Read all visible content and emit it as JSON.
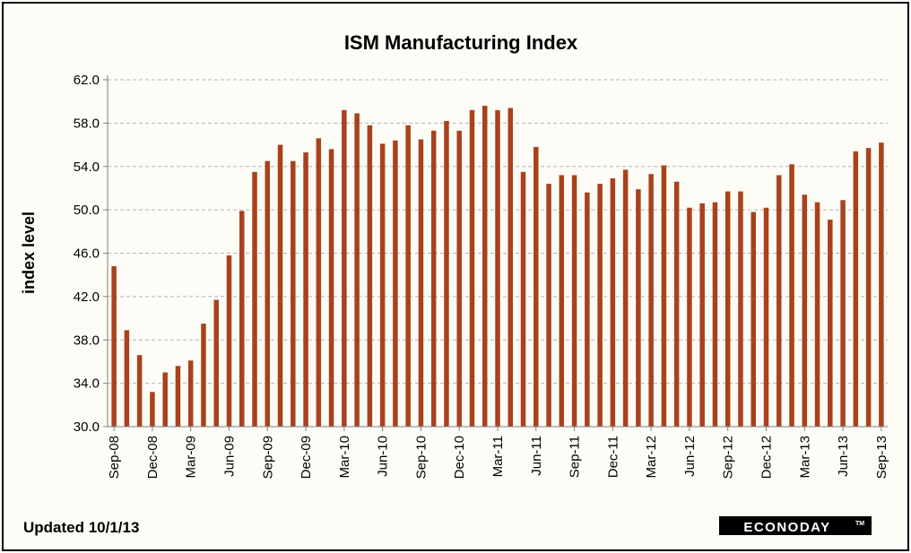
{
  "footer": {
    "updated": "Updated  10/1/13",
    "logo_text": "ECONODAY",
    "logo_tm": "TM"
  },
  "colors": {
    "bar": "#a8421c",
    "plot_bg": "#fdfcf6",
    "grid": "#b4b4b4",
    "axis": "#808080",
    "logo_bg": "#000000"
  },
  "chart_data": {
    "type": "bar",
    "title": "ISM Manufacturing Index",
    "xlabel": "",
    "ylabel": "index level",
    "ylim": [
      30.0,
      62.0
    ],
    "yticks": [
      "30.0",
      "34.0",
      "38.0",
      "42.0",
      "46.0",
      "50.0",
      "54.0",
      "58.0",
      "62.0"
    ],
    "grid": true,
    "legend": "none",
    "x_tick_labels": [
      "Sep-08",
      "Dec-08",
      "Mar-09",
      "Jun-09",
      "Sep-09",
      "Dec-09",
      "Mar-10",
      "Jun-10",
      "Sep-10",
      "Dec-10",
      "Mar-11",
      "Jun-11",
      "Sep-11",
      "Dec-11",
      "Mar-12",
      "Jun-12",
      "Sep-12",
      "Dec-12",
      "Mar-13",
      "Jun-13",
      "Sep-13"
    ],
    "categories": [
      "Sep-08",
      "Oct-08",
      "Nov-08",
      "Dec-08",
      "Jan-09",
      "Feb-09",
      "Mar-09",
      "Apr-09",
      "May-09",
      "Jun-09",
      "Jul-09",
      "Aug-09",
      "Sep-09",
      "Oct-09",
      "Nov-09",
      "Dec-09",
      "Jan-10",
      "Feb-10",
      "Mar-10",
      "Apr-10",
      "May-10",
      "Jun-10",
      "Jul-10",
      "Aug-10",
      "Sep-10",
      "Oct-10",
      "Nov-10",
      "Dec-10",
      "Jan-11",
      "Feb-11",
      "Mar-11",
      "Apr-11",
      "May-11",
      "Jun-11",
      "Jul-11",
      "Aug-11",
      "Sep-11",
      "Oct-11",
      "Nov-11",
      "Dec-11",
      "Jan-12",
      "Feb-12",
      "Mar-12",
      "Apr-12",
      "May-12",
      "Jun-12",
      "Jul-12",
      "Aug-12",
      "Sep-12",
      "Oct-12",
      "Nov-12",
      "Dec-12",
      "Jan-13",
      "Feb-13",
      "Mar-13",
      "Apr-13",
      "May-13",
      "Jun-13",
      "Jul-13",
      "Aug-13",
      "Sep-13"
    ],
    "values": [
      44.8,
      38.9,
      36.6,
      33.2,
      35.0,
      35.6,
      36.1,
      39.5,
      41.7,
      45.8,
      49.9,
      53.5,
      54.5,
      56.0,
      54.5,
      55.3,
      56.6,
      55.6,
      59.2,
      58.9,
      57.8,
      56.1,
      56.4,
      57.8,
      56.5,
      57.3,
      58.2,
      57.3,
      59.2,
      59.6,
      59.2,
      59.4,
      53.5,
      55.8,
      52.4,
      53.2,
      53.2,
      51.6,
      52.4,
      52.9,
      53.7,
      51.9,
      53.3,
      54.1,
      52.6,
      50.2,
      50.6,
      50.7,
      51.7,
      51.7,
      49.8,
      50.2,
      53.2,
      54.2,
      51.4,
      50.7,
      49.1,
      50.9,
      55.4,
      55.7,
      56.2
    ]
  }
}
